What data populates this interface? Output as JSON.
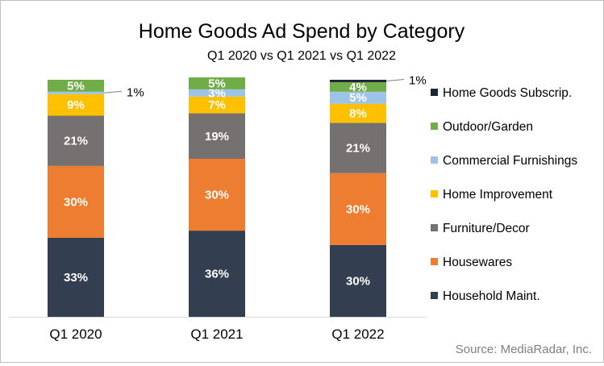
{
  "chart_data": {
    "type": "bar",
    "stacked": true,
    "title": "Home Goods Ad Spend by Category",
    "subtitle": "Q1 2020 vs Q1 2021 vs Q1 2022",
    "categories": [
      "Q1 2020",
      "Q1 2021",
      "Q1 2022"
    ],
    "ylim": [
      0,
      100
    ],
    "grid": false,
    "legend_position": "right",
    "source": "Source: MediaRadar, Inc.",
    "series": [
      {
        "name": "Household Maint.",
        "color": "#333f50",
        "label_color": "#ffffff",
        "values": [
          33,
          36,
          30
        ],
        "labels": [
          "33%",
          "36%",
          "30%"
        ]
      },
      {
        "name": "Housewares",
        "color": "#ed7d31",
        "label_color": "#ffffff",
        "values": [
          30,
          30,
          30
        ],
        "labels": [
          "30%",
          "30%",
          "30%"
        ]
      },
      {
        "name": "Furniture/Decor",
        "color": "#767171",
        "label_color": "#ffffff",
        "values": [
          21,
          19,
          21
        ],
        "labels": [
          "21%",
          "19%",
          "21%"
        ]
      },
      {
        "name": "Home Improvement",
        "color": "#ffc000",
        "label_color": "#ffffff",
        "values": [
          9,
          7,
          8
        ],
        "labels": [
          "9%",
          "7%",
          "8%"
        ]
      },
      {
        "name": "Commercial Furnishings",
        "color": "#9dc3e6",
        "label_color": "#ffffff",
        "values": [
          1,
          3,
          5
        ],
        "labels": [
          "",
          "3%",
          "5%"
        ]
      },
      {
        "name": "Outdoor/Garden",
        "color": "#70ad47",
        "label_color": "#ffffff",
        "values": [
          5,
          5,
          4
        ],
        "labels": [
          "5%",
          "5%",
          "4%"
        ]
      },
      {
        "name": "Home Goods Subscrip.",
        "color": "#1f2633",
        "label_color": "#ffffff",
        "values": [
          0,
          0,
          1
        ],
        "labels": [
          "",
          "",
          ""
        ]
      }
    ],
    "annotations": [
      {
        "category": "Q1 2020",
        "series": "Commercial Furnishings",
        "text": "1%"
      },
      {
        "category": "Q1 2022",
        "series": "Home Goods Subscrip.",
        "text": "1%"
      }
    ]
  }
}
